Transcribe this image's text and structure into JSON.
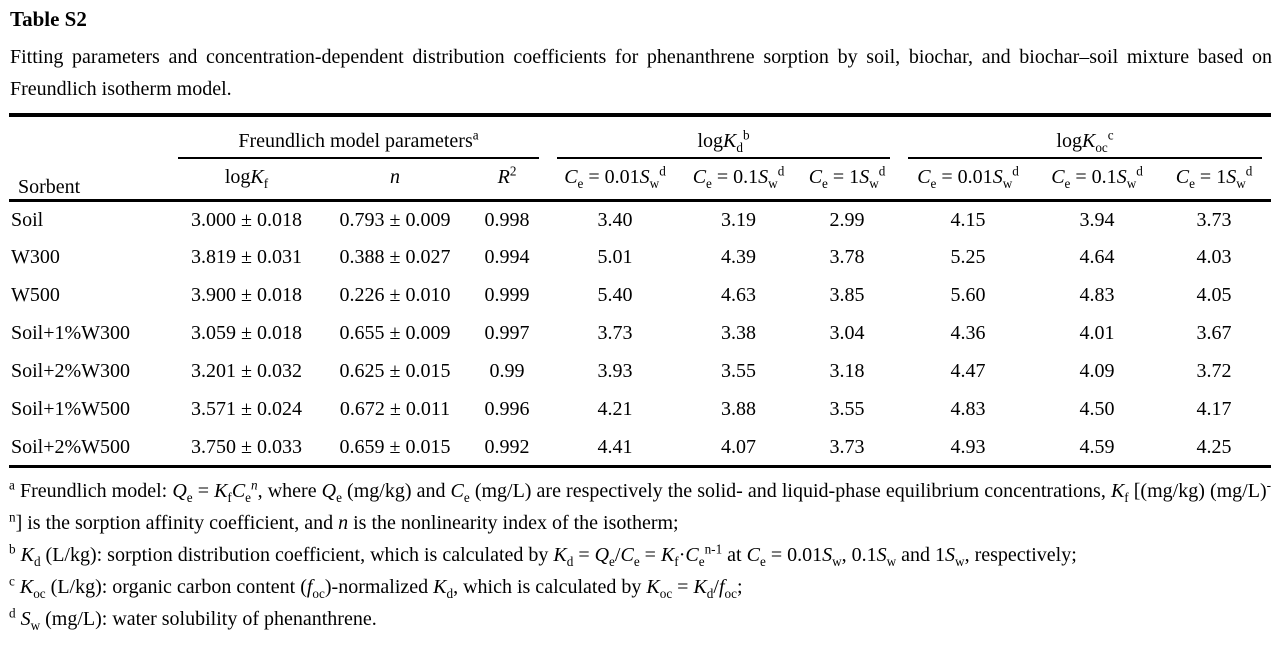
{
  "title": "Table S2",
  "caption": "Fitting parameters and concentration-dependent distribution coefficients for phenanthrene sorption by soil, biochar, and biochar–soil mixture based on Freundlich isotherm model.",
  "table": {
    "header": {
      "sorbent": "Sorbent",
      "group_freundlich": "Freundlich model parameters<sup>a</sup>",
      "group_logkd": "log<i>K</i><sub>d</sub><sup>b</sup>",
      "group_logkoc": "log<i>K</i><sub>oc</sub><sup>c</sup>",
      "sub": [
        "log<i>K</i><sub>f</sub>",
        "<i>n</i>",
        "<i>R</i><sup>2</sup>",
        "<i>C</i><sub>e</sub> = 0.01<i>S</i><sub>w</sub><sup>d</sup>",
        "<i>C</i><sub>e</sub> = 0.1<i>S</i><sub>w</sub><sup>d</sup>",
        "<i>C</i><sub>e</sub> = 1<i>S</i><sub>w</sub><sup>d</sup>",
        "<i>C</i><sub>e</sub> = 0.01<i>S</i><sub>w</sub><sup>d</sup>",
        "<i>C</i><sub>e</sub> = 0.1<i>S</i><sub>w</sub><sup>d</sup>",
        "<i>C</i><sub>e</sub> = 1<i>S</i><sub>w</sub><sup>d</sup>"
      ]
    },
    "rows": [
      {
        "sorbent": "Soil",
        "cells": [
          "3.000 ± 0.018",
          "0.793 ± 0.009",
          "0.998",
          "3.40",
          "3.19",
          "2.99",
          "4.15",
          "3.94",
          "3.73"
        ]
      },
      {
        "sorbent": "W300",
        "cells": [
          "3.819 ± 0.031",
          "0.388 ± 0.027",
          "0.994",
          "5.01",
          "4.39",
          "3.78",
          "5.25",
          "4.64",
          "4.03"
        ]
      },
      {
        "sorbent": "W500",
        "cells": [
          "3.900 ± 0.018",
          "0.226 ± 0.010",
          "0.999",
          "5.40",
          "4.63",
          "3.85",
          "5.60",
          "4.83",
          "4.05"
        ]
      },
      {
        "sorbent": "Soil+1%W300",
        "cells": [
          "3.059 ± 0.018",
          "0.655 ± 0.009",
          "0.997",
          "3.73",
          "3.38",
          "3.04",
          "4.36",
          "4.01",
          "3.67"
        ]
      },
      {
        "sorbent": "Soil+2%W300",
        "cells": [
          "3.201 ± 0.032",
          "0.625 ± 0.015",
          "0.99",
          "3.93",
          "3.55",
          "3.18",
          "4.47",
          "4.09",
          "3.72"
        ]
      },
      {
        "sorbent": "Soil+1%W500",
        "cells": [
          "3.571 ± 0.024",
          "0.672 ± 0.011",
          "0.996",
          "4.21",
          "3.88",
          "3.55",
          "4.83",
          "4.50",
          "4.17"
        ]
      },
      {
        "sorbent": "Soil+2%W500",
        "cells": [
          "3.750 ± 0.033",
          "0.659 ± 0.015",
          "0.992",
          "4.41",
          "4.07",
          "3.73",
          "4.93",
          "4.59",
          "4.25"
        ]
      }
    ]
  },
  "footnotes": [
    "<sup>a</sup> Freundlich model: <i>Q</i><sub>e</sub> = <i>K</i><sub>f</sub><i>C</i><sub>e</sub><sup><i>n</i></sup>, where <i>Q</i><sub>e</sub> (mg/kg) and <i>C</i><sub>e</sub> (mg/L) are respectively the solid- and liquid-phase equilibrium concentrations, <i>K</i><sub>f</sub> [(mg/kg) (mg/L)<sup>-n</sup>] is the sorption affinity coefficient, and <i>n</i> is the nonlinearity index of the isotherm;",
    "<sup>b</sup> <i>K</i><sub>d</sub> (L/kg): sorption distribution coefficient, which is calculated by <i>K</i><sub>d</sub> = <i>Q</i><sub>e</sub>/<i>C</i><sub>e</sub> = <i>K</i><sub>f</sub>·<i>C</i><sub>e</sub><sup>n-1</sup> at <i>C</i><sub>e</sub> = 0.01<i>S</i><sub>w</sub>, 0.1<i>S</i><sub>w</sub> and 1<i>S</i><sub>w</sub>, respectively;",
    "<sup>c</sup> <i>K</i><sub>oc</sub> (L/kg): organic carbon content (<i>f</i><sub>oc</sub>)-normalized <i>K</i><sub>d</sub>, which is calculated by <i>K</i><sub>oc</sub> = <i>K</i><sub>d</sub>/<i>f</i><sub>oc</sub>;",
    "<sup>d</sup> <i>S</i><sub>w</sub> (mg/L): water solubility of phenanthrene."
  ]
}
